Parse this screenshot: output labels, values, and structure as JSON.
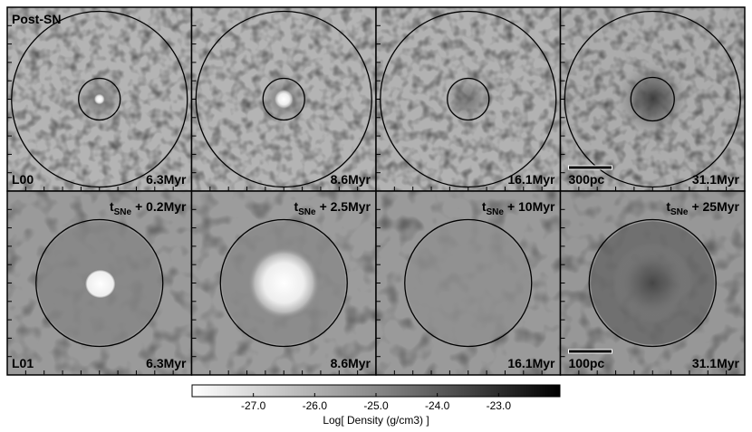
{
  "figure": {
    "title": "Post-SN",
    "rows": [
      {
        "label": "L00",
        "scale_bar": "300pc",
        "panels": [
          {
            "time": "6.3Myr"
          },
          {
            "time": "8.6Myr"
          },
          {
            "time": "16.1Myr"
          },
          {
            "time": "31.1Myr"
          }
        ]
      },
      {
        "label": "L01",
        "scale_bar": "100pc",
        "panels": [
          {
            "time": "6.3Myr",
            "event": {
              "t": "t",
              "sub": "SNe",
              "rest": "+ 0.2Myr"
            }
          },
          {
            "time": "8.6Myr",
            "event": {
              "t": "t",
              "sub": "SNe",
              "rest": "+ 2.5Myr"
            }
          },
          {
            "time": "16.1Myr",
            "event": {
              "t": "t",
              "sub": "SNe",
              "rest": "+ 10Myr"
            }
          },
          {
            "time": "31.1Myr",
            "event": {
              "t": "t",
              "sub": "SNe",
              "rest": "+ 25Myr"
            }
          }
        ]
      }
    ],
    "colorbar": {
      "label": "Log[ Density (g/cm3) ]",
      "lim": [
        -28,
        -22
      ],
      "ticks": [
        {
          "value": -27,
          "label": "-27.0"
        },
        {
          "value": -26,
          "label": "-26.0"
        },
        {
          "value": -25,
          "label": "-25.0"
        },
        {
          "value": -24,
          "label": "-24.0"
        },
        {
          "value": -23,
          "label": "-23.0"
        }
      ]
    }
  }
}
